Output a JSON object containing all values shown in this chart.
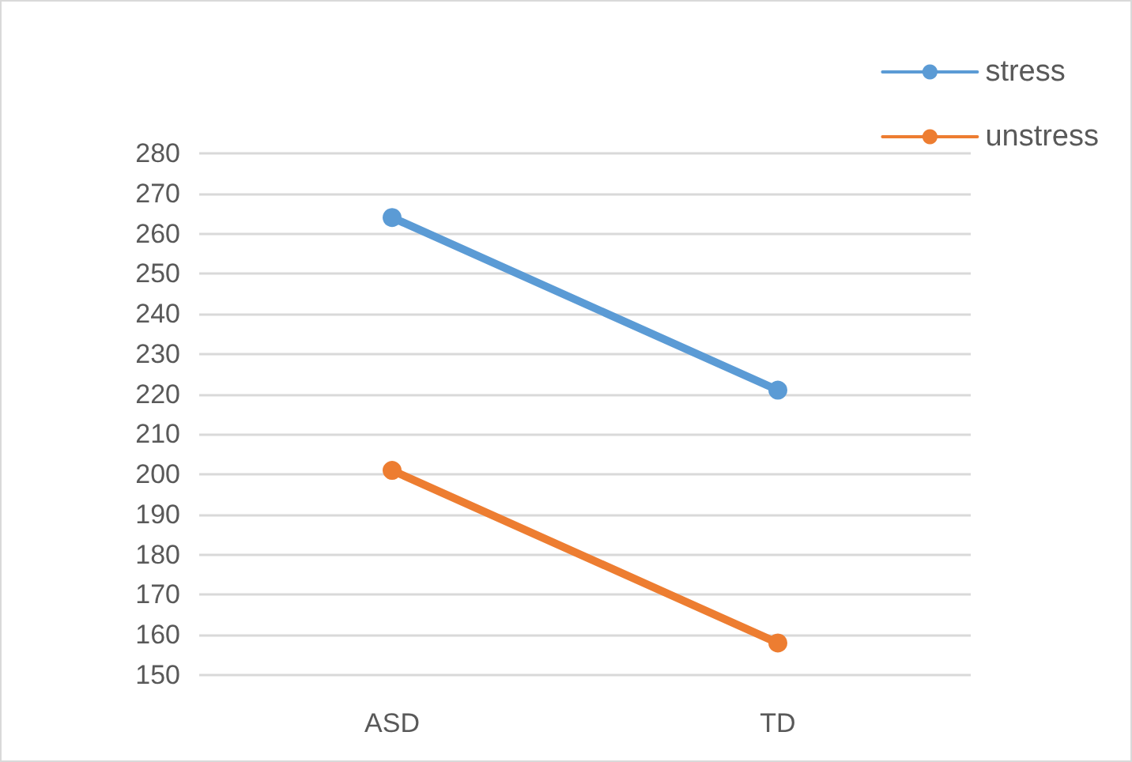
{
  "chart_data": {
    "type": "line",
    "categories": [
      "ASD",
      "TD"
    ],
    "series": [
      {
        "name": "stress",
        "color": "#5b9bd5",
        "values": [
          264,
          221
        ]
      },
      {
        "name": "unstress",
        "color": "#ed7d31",
        "values": [
          201,
          158
        ]
      }
    ],
    "ylim": [
      150,
      280
    ],
    "yticks": [
      150,
      160,
      170,
      180,
      190,
      200,
      210,
      220,
      230,
      240,
      250,
      260,
      270,
      280
    ],
    "grid": "y",
    "legend": "top right",
    "marker": "circle",
    "line_style": "solid"
  }
}
